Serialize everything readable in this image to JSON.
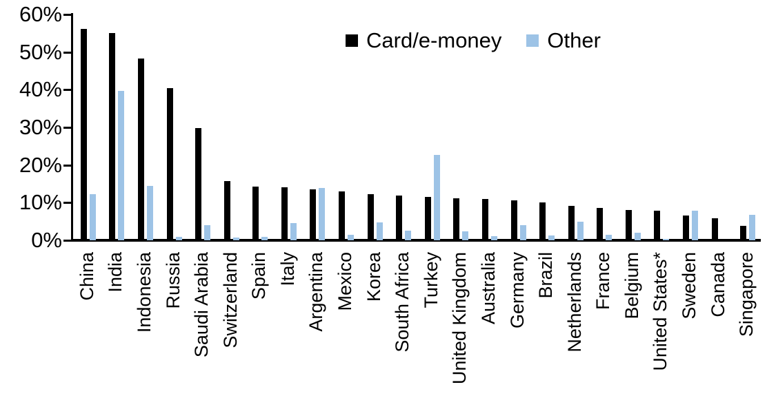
{
  "chart_data": {
    "type": "bar",
    "title": "",
    "xlabel": "",
    "ylabel": "",
    "ylim": [
      0,
      60
    ],
    "grid": false,
    "legend_position": "top-center",
    "y_axis": {
      "tick_labels": [
        "60%",
        "50%",
        "40%",
        "30%",
        "20%",
        "10%",
        "0%"
      ],
      "tick_values": [
        60,
        50,
        40,
        30,
        20,
        10,
        0
      ]
    },
    "categories": [
      "China",
      "India",
      "Indonesia",
      "Russia",
      "Saudi Arabia",
      "Switzerland",
      "Spain",
      "Italy",
      "Argentina",
      "Mexico",
      "Korea",
      "South Africa",
      "Turkey",
      "United Kingdom",
      "Australia",
      "Germany",
      "Brazil",
      "Netherlands",
      "France",
      "Belgium",
      "United States*",
      "Sweden",
      "Canada",
      "Singapore"
    ],
    "series": [
      {
        "name": "Card/e-money",
        "color": "#000000",
        "values": [
          56.2,
          55.0,
          48.3,
          40.4,
          29.8,
          15.7,
          14.2,
          14.1,
          13.5,
          13.0,
          12.3,
          11.9,
          11.6,
          11.2,
          10.9,
          10.7,
          10.0,
          9.2,
          8.6,
          8.1,
          7.8,
          6.5,
          5.9,
          3.8
        ]
      },
      {
        "name": "Other",
        "color": "#9DC3E6",
        "values": [
          12.3,
          39.7,
          14.5,
          1.0,
          4.0,
          0.8,
          1.0,
          4.6,
          13.9,
          1.4,
          4.7,
          2.5,
          22.6,
          2.4,
          1.1,
          4.0,
          1.2,
          4.9,
          1.5,
          2.1,
          0.3,
          7.9,
          0,
          6.7
        ]
      }
    ]
  }
}
